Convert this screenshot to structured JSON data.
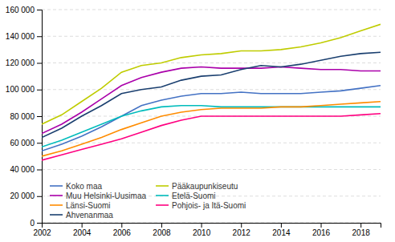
{
  "chart_data": {
    "type": "line",
    "x": [
      2002,
      2003,
      2004,
      2005,
      2006,
      2007,
      2008,
      2009,
      2010,
      2011,
      2012,
      2013,
      2014,
      2015,
      2016,
      2017,
      2018,
      2019
    ],
    "series": [
      {
        "name": "Koko maa",
        "color": "#4472C4",
        "values": [
          54000,
          59000,
          65000,
          72000,
          80000,
          88000,
          92000,
          95000,
          97000,
          97000,
          98000,
          97000,
          97000,
          97000,
          98000,
          99000,
          101000,
          103000
        ]
      },
      {
        "name": "Pääkaupunkiseutu",
        "color": "#BFCC00",
        "values": [
          74000,
          81000,
          91000,
          101000,
          113000,
          118000,
          120000,
          124000,
          126000,
          127000,
          129000,
          129000,
          130000,
          132000,
          135000,
          139000,
          144000,
          149000
        ]
      },
      {
        "name": "Muu Helsinki-Uusimaa",
        "color": "#AA00AA",
        "values": [
          67000,
          74000,
          83000,
          93000,
          103000,
          109000,
          113000,
          116000,
          117000,
          116000,
          116000,
          116000,
          117000,
          116000,
          115000,
          115000,
          114000,
          114000
        ]
      },
      {
        "name": "Etelä-Suomi",
        "color": "#00BCBC",
        "values": [
          57000,
          62000,
          68000,
          74000,
          80000,
          84000,
          87000,
          88000,
          88000,
          87000,
          87000,
          87000,
          87000,
          87000,
          87000,
          87000,
          87000,
          87000
        ]
      },
      {
        "name": "Länsi-Suomi",
        "color": "#FF8C00",
        "values": [
          50000,
          54000,
          59000,
          64000,
          70000,
          75000,
          80000,
          83000,
          85000,
          86000,
          86000,
          86000,
          87000,
          87000,
          88000,
          89000,
          90000,
          91000
        ]
      },
      {
        "name": "Pohjois- ja Itä-Suomi",
        "color": "#FF0080",
        "values": [
          47000,
          51000,
          55000,
          59000,
          63000,
          68000,
          73000,
          77000,
          80000,
          80000,
          80000,
          80000,
          80000,
          80000,
          80000,
          80000,
          81000,
          82000
        ]
      },
      {
        "name": "Ahvenanmaa",
        "color": "#1A3F6F",
        "values": [
          64000,
          71000,
          80000,
          88000,
          97000,
          100000,
          102000,
          107000,
          110000,
          111000,
          115000,
          118000,
          117000,
          119000,
          122000,
          125000,
          127000,
          128000
        ]
      }
    ],
    "xlim": [
      2002,
      2019
    ],
    "xticks": [
      2002,
      2004,
      2006,
      2008,
      2010,
      2012,
      2014,
      2016,
      2018
    ],
    "ylim": [
      0,
      160000
    ],
    "yticks": [
      0,
      {
        "value": 20000,
        "label": "20 000"
      },
      {
        "value": 40000,
        "label": "40 000"
      },
      {
        "value": 60000,
        "label": "60 000"
      },
      {
        "value": 80000,
        "label": "80 000"
      },
      {
        "value": 100000,
        "label": "100 000"
      },
      {
        "value": 120000,
        "label": "120 000"
      },
      {
        "value": 140000,
        "label": "140 000"
      },
      {
        "value": 160000,
        "label": "160 000"
      }
    ],
    "grid": true,
    "legend": "lower left"
  }
}
